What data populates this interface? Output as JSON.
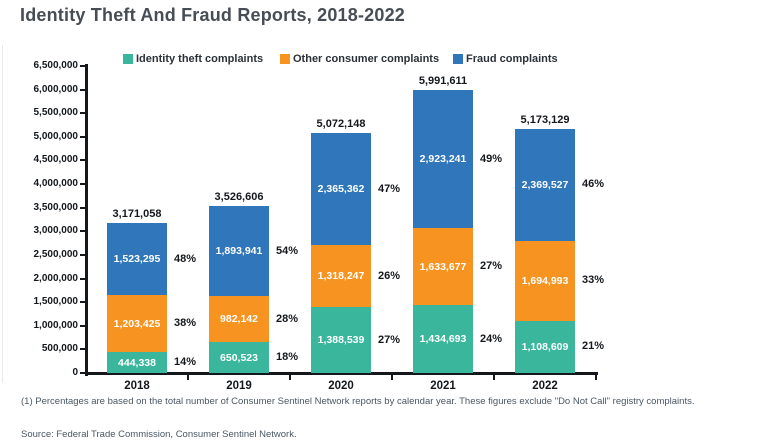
{
  "page": {
    "title": "Identity Theft And Fraud Reports, 2018-2022",
    "footnote": "(1) Percentages are based on the total number of Consumer Sentinel Network reports by calendar year. These figures exclude \"Do Not Call\" registry complaints.",
    "source": "Source: Federal Trade Commission, Consumer Sentinel Network."
  },
  "colors": {
    "identity_theft": "#3ab69c",
    "other_consumer": "#f79421",
    "fraud": "#2f76bb",
    "axis": "#14181c",
    "title_text": "#474d54",
    "value_text": "#ffffff"
  },
  "chart_data": {
    "type": "bar",
    "stacked": true,
    "title": "Identity Theft And Fraud Reports, 2018-2022",
    "categories": [
      "2018",
      "2019",
      "2020",
      "2021",
      "2022"
    ],
    "series": [
      {
        "name": "Identity theft complaints",
        "color": "#3ab69c",
        "values": [
          444338,
          650523,
          1388539,
          1434693,
          1108609
        ],
        "percent_labels": [
          "14%",
          "18%",
          "27%",
          "24%",
          "21%"
        ]
      },
      {
        "name": "Other consumer complaints",
        "color": "#f79421",
        "values": [
          1203425,
          982142,
          1318247,
          1633677,
          1694993
        ],
        "percent_labels": [
          "38%",
          "28%",
          "26%",
          "27%",
          "33%"
        ]
      },
      {
        "name": "Fraud complaints",
        "color": "#2f76bb",
        "values": [
          1523295,
          1893941,
          2365362,
          2923241,
          2369527
        ],
        "percent_labels": [
          "48%",
          "54%",
          "47%",
          "49%",
          "46%"
        ]
      }
    ],
    "totals": [
      "3,171,058",
      "3,526,606",
      "5,072,148",
      "5,991,611",
      "5,173,129"
    ],
    "ylim": [
      0,
      6500000
    ],
    "ytick_step": 500000,
    "ytick_labels": [
      "0",
      "500,000",
      "1,000,000",
      "1,500,000",
      "2,000,000",
      "2,500,000",
      "3,000,000",
      "3,500,000",
      "4,000,000",
      "4,500,000",
      "5,000,000",
      "5,500,000",
      "6,000,000",
      "6,500,000"
    ],
    "legend_position": "top",
    "grid": false,
    "value_labels_inside": true
  }
}
